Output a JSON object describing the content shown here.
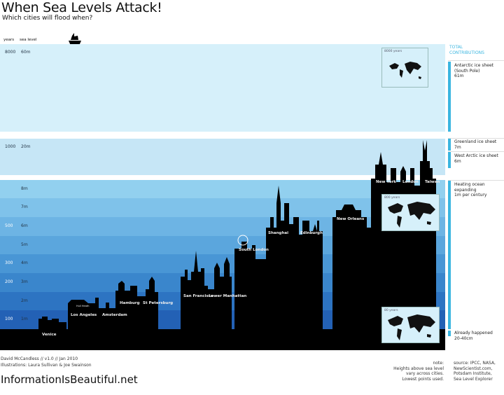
{
  "header": {
    "title": "When Sea Levels Attack!",
    "subtitle": "Which cities will flood when?",
    "col_years": "years",
    "col_sea_level": "sea level"
  },
  "bands": [
    {
      "years": "8000",
      "level": "60m",
      "color": "#d6f0fa"
    },
    {
      "years": "1000",
      "level": "20m",
      "color": "#c6e6f6"
    },
    {
      "years": "",
      "level": "8m",
      "color": "#92d0ef"
    },
    {
      "years": "",
      "level": "7m",
      "color": "#7fc2ea"
    },
    {
      "years": "500",
      "level": "6m",
      "color": "#6db4e4"
    },
    {
      "years": "",
      "level": "5m",
      "color": "#5ba6dd"
    },
    {
      "years": "300",
      "level": "4m",
      "color": "#4996d5"
    },
    {
      "years": "200",
      "level": "3m",
      "color": "#3a86cc"
    },
    {
      "years": "",
      "level": "2m",
      "color": "#2d74c2"
    },
    {
      "years": "100",
      "level": "1m",
      "color": "#2361b5"
    }
  ],
  "cities": [
    "Venice",
    "Los Angeles",
    "Amsterdam",
    "Hamburg",
    "St Petersburg",
    "San Francisco",
    "Lower Manhattan",
    "South London",
    "Shanghai",
    "Edinburgh",
    "New Orleans",
    "New York",
    "London",
    "Taiwan"
  ],
  "small_label": "Hull Heath",
  "maps": [
    {
      "label": "8000 years"
    },
    {
      "label": "800 years"
    },
    {
      "label": "80 years"
    }
  ],
  "contributions": {
    "title_1": "TOTAL",
    "title_2": "CONTRIBUTIONS",
    "accent": "#3bb6e0",
    "items": [
      {
        "line1": "Antarctic ice sheet",
        "line2": "(South Pole)",
        "line3": "61m"
      },
      {
        "line1": "Greenland ice sheet",
        "line2": "7m"
      },
      {
        "line1": "West Arctic ice sheet",
        "line2": "6m"
      },
      {
        "line1": "Heating ocean",
        "line2": "expanding",
        "line3": "1m per century"
      },
      {
        "line1": "Already happened",
        "line2": "20-40cm"
      }
    ]
  },
  "footer": {
    "credit_1": "David McCandless // v1.0 // Jan 2010",
    "credit_2": "Illustrations: Laura Sullivan & Joe Swainson",
    "logo": "InformationIsBeautiful.net",
    "note": [
      "note:",
      "Heights above sea level",
      "vary across cities.",
      "Lowest points used."
    ],
    "source": [
      "source: IPCC, NASA,",
      "NewScientist.com,",
      "Potsdam Institute,",
      "Sea Level Explorer"
    ]
  }
}
